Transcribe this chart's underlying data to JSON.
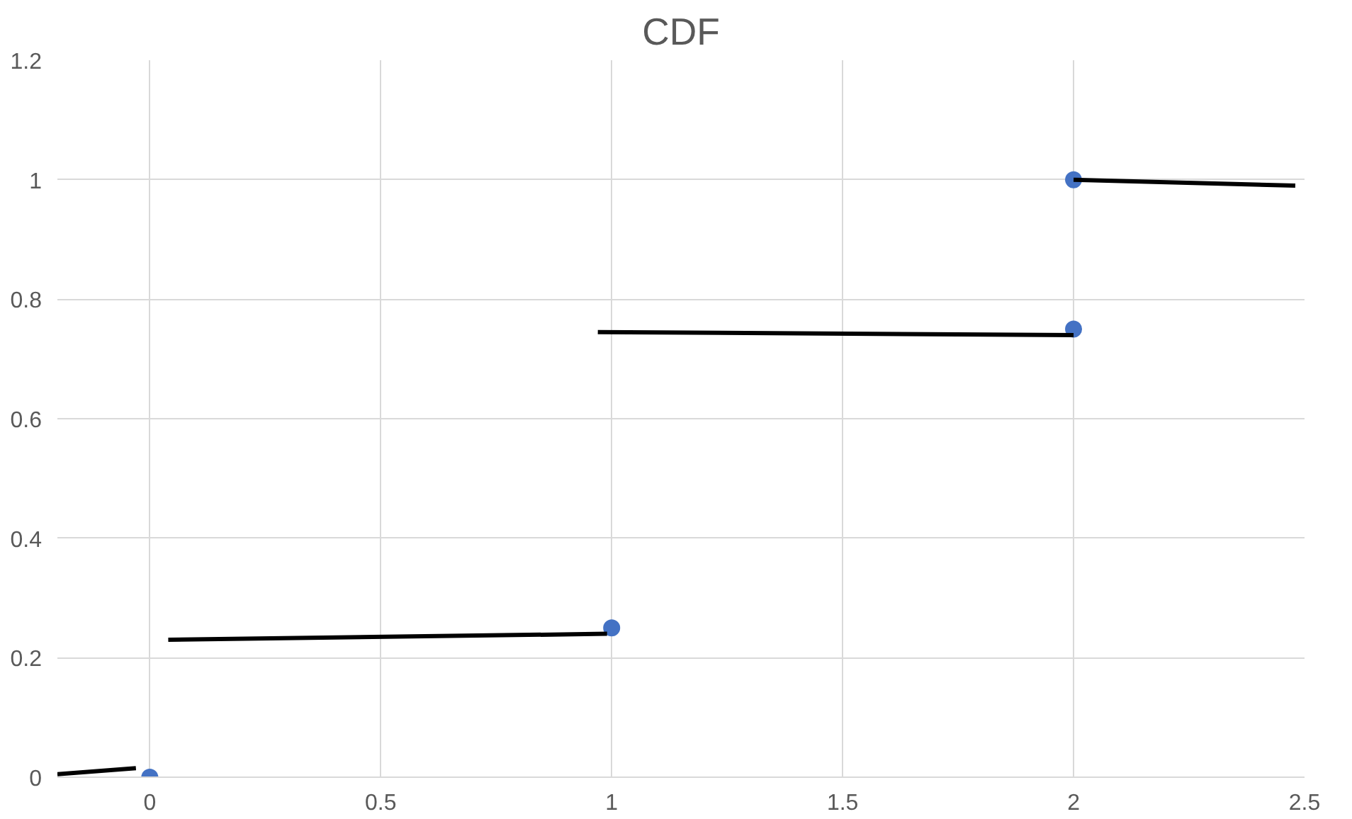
{
  "chart_data": {
    "type": "scatter",
    "title": "CDF",
    "xlim": [
      -0.2,
      2.5
    ],
    "ylim": [
      0,
      1.2
    ],
    "xticks": [
      0,
      0.5,
      1,
      1.5,
      2,
      2.5
    ],
    "yticks": [
      0,
      0.2,
      0.4,
      0.6,
      0.8,
      1,
      1.2
    ],
    "grid": true,
    "series": [
      {
        "marker": "circle",
        "color": "#4472c4",
        "x": [
          0,
          1,
          2,
          2
        ],
        "values": [
          0,
          0.25,
          0.75,
          1
        ]
      },
      {
        "type": "line",
        "color": "#000000",
        "line_style": "solid",
        "x": [
          -0.2,
          -0.03
        ],
        "values": [
          0.005,
          0.015
        ]
      },
      {
        "type": "line",
        "color": "#000000",
        "line_style": "solid",
        "x": [
          0.04,
          0.99
        ],
        "values": [
          0.23,
          0.24
        ]
      },
      {
        "type": "line",
        "color": "#000000",
        "line_style": "solid",
        "x": [
          0.97,
          2.0
        ],
        "values": [
          0.745,
          0.74
        ]
      },
      {
        "type": "line",
        "color": "#000000",
        "line_style": "solid",
        "x": [
          2.0,
          2.48
        ],
        "values": [
          1.0,
          0.99
        ]
      }
    ]
  }
}
